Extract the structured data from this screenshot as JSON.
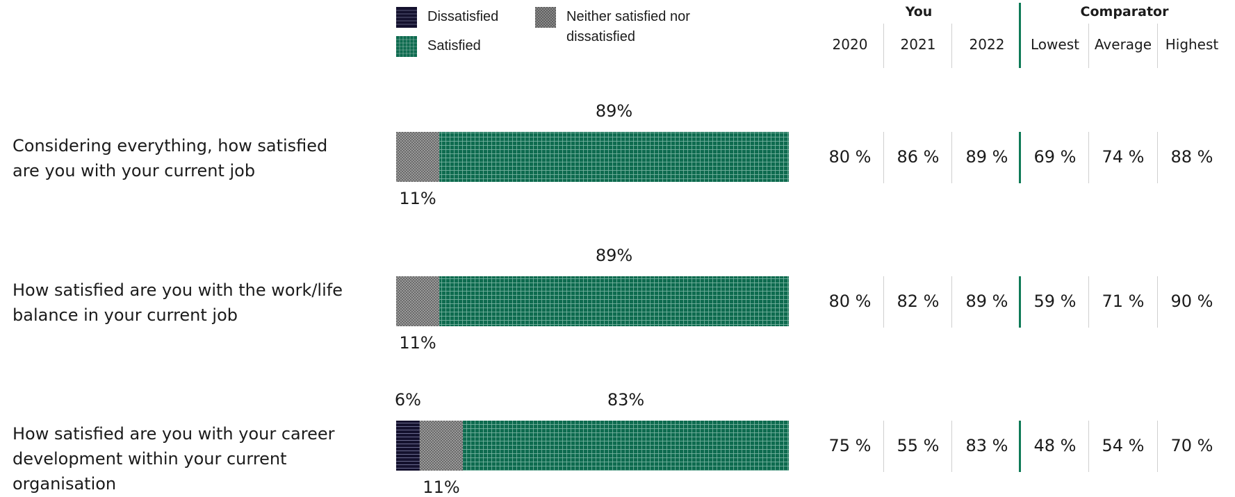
{
  "legend": [
    {
      "key": "dissatisfied",
      "label": "Dissatisfied",
      "color": "#14112e",
      "pattern": "hlines"
    },
    {
      "key": "neither",
      "label": "Neither satisfied nor dissatisfied",
      "label_line1": "Neither satisfied nor",
      "label_line2": "dissatisfied",
      "color": "#8a8a8a",
      "pattern": "checker"
    },
    {
      "key": "satisfied",
      "label": "Satisfied",
      "color": "#0e6b4f",
      "pattern": "grid"
    }
  ],
  "table": {
    "group_you": "You",
    "group_comparator": "Comparator",
    "columns": [
      "2020",
      "2021",
      "2022",
      "Lowest",
      "Average",
      "Highest"
    ]
  },
  "rows": [
    {
      "question": "Considering everything, how satisfied are you with your current job",
      "q_line1": "Considering everything, how satisfied",
      "q_line2": "are you with your current job",
      "q_line3": "",
      "values": [
        "80 %",
        "86 %",
        "89 %",
        "69 %",
        "74 %",
        "88 %"
      ]
    },
    {
      "question": "How satisfied are you with the work/life balance in your current job",
      "q_line1": "How satisfied are you with the work/life",
      "q_line2": "balance in your current job",
      "q_line3": "",
      "values": [
        "80 %",
        "82 %",
        "89 %",
        "59 %",
        "71 %",
        "90 %"
      ]
    },
    {
      "question": "How satisfied are you with your career development within your current organisation",
      "q_line1": "How satisfied are you with your career",
      "q_line2": "development within your current",
      "q_line3": "organisation",
      "values": [
        "75 %",
        "55 %",
        "83 %",
        "48 %",
        "54 %",
        "70 %"
      ]
    }
  ],
  "chart_data": {
    "type": "bar",
    "orientation": "horizontal",
    "stacked": true,
    "categories": [
      "Considering everything, how satisfied are you with your current job",
      "How satisfied are you with the work/life balance in your current job",
      "How satisfied are you with your career development within your current organisation"
    ],
    "series": [
      {
        "name": "Dissatisfied",
        "values": [
          0,
          0,
          6
        ],
        "labels": [
          "",
          "",
          "6%"
        ]
      },
      {
        "name": "Neither satisfied nor dissatisfied",
        "values": [
          11,
          11,
          11
        ],
        "labels": [
          "11%",
          "11%",
          "11%"
        ]
      },
      {
        "name": "Satisfied",
        "values": [
          89,
          89,
          83
        ],
        "labels": [
          "89%",
          "89%",
          "83%"
        ]
      }
    ],
    "xlim": [
      0,
      100
    ],
    "legend_position": "top",
    "grid": false
  }
}
